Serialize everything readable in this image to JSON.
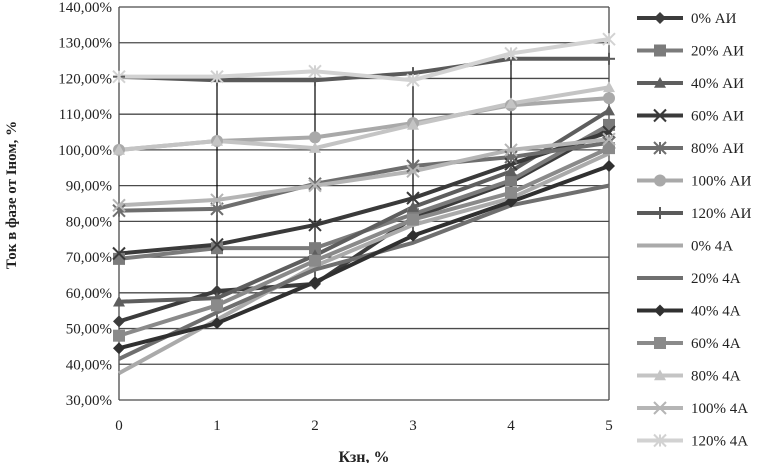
{
  "chart_data": {
    "type": "line",
    "title": "",
    "xlabel": "Кзн, %",
    "ylabel": "Ток в фазе от Iном, %",
    "x": [
      0,
      1,
      2,
      3,
      4,
      5
    ],
    "x_tick_labels": [
      "0",
      "1",
      "2",
      "3",
      "4",
      "5"
    ],
    "ylim": [
      30,
      140
    ],
    "y_tick_labels": [
      "30,00%",
      "40,00%",
      "50,00%",
      "60,00%",
      "70,00%",
      "80,00%",
      "90,00%",
      "100,00%",
      "110,00%",
      "120,00%",
      "130,00%",
      "140,00%"
    ],
    "y_ticks": [
      30,
      40,
      50,
      60,
      70,
      80,
      90,
      100,
      110,
      120,
      130,
      140
    ],
    "grid": "horizontal",
    "legend_position": "right",
    "vertical_lines_at_x": [
      1,
      2,
      3,
      4
    ],
    "vertical_line_ranges": [
      [
        51.5,
        120.5
      ],
      [
        62.5,
        120.5
      ],
      [
        74,
        121.5
      ],
      [
        84.5,
        125.5
      ]
    ],
    "series": [
      {
        "name": "0% АИ",
        "color": "#3c3c3c",
        "marker": "diamond",
        "values": [
          52,
          60.5,
          62.5,
          81,
          91,
          106
        ]
      },
      {
        "name": "20% АИ",
        "color": "#7b7b7b",
        "marker": "square",
        "values": [
          69.5,
          72.5,
          72.5,
          82,
          91.5,
          107
        ]
      },
      {
        "name": "40% АИ",
        "color": "#5e5e5e",
        "marker": "triangle",
        "values": [
          57.5,
          58.5,
          70.5,
          84,
          94,
          111
        ]
      },
      {
        "name": "60% АИ",
        "color": "#3a3a3a",
        "marker": "x",
        "values": [
          71,
          73.5,
          79,
          86.5,
          96,
          105
        ]
      },
      {
        "name": "80% АИ",
        "color": "#6e6e6e",
        "marker": "star",
        "values": [
          83,
          83.5,
          90.5,
          95.5,
          98,
          102
        ]
      },
      {
        "name": "100% АИ",
        "color": "#a9a9a9",
        "marker": "circle",
        "values": [
          100,
          102.5,
          103.5,
          107.5,
          112.5,
          114.5
        ]
      },
      {
        "name": "120% АИ",
        "color": "#5a5a5a",
        "marker": "plus",
        "values": [
          120.5,
          119.5,
          119.5,
          121.5,
          125.5,
          125.5
        ]
      },
      {
        "name": "0% 4А",
        "color": "#aaaaaa",
        "marker": "none",
        "values": [
          37.5,
          52.5,
          67.5,
          79,
          86.5,
          99
        ]
      },
      {
        "name": "20% 4А",
        "color": "#6f6f6f",
        "marker": "none",
        "values": [
          41.5,
          54.5,
          66.5,
          74,
          84.5,
          90
        ]
      },
      {
        "name": "40% 4А",
        "color": "#303030",
        "marker": "diamond",
        "values": [
          44.5,
          51.5,
          63,
          76,
          85.5,
          95.5
        ]
      },
      {
        "name": "60% 4А",
        "color": "#8a8a8a",
        "marker": "square",
        "values": [
          48,
          56.5,
          69,
          80.5,
          88,
          100.5
        ]
      },
      {
        "name": "80% 4А",
        "color": "#c4c4c4",
        "marker": "triangle",
        "values": [
          100,
          102.5,
          100.5,
          107,
          113,
          117.5
        ]
      },
      {
        "name": "100% 4А",
        "color": "#b5b5b5",
        "marker": "x",
        "values": [
          84.5,
          86,
          90,
          94,
          100,
          103
        ]
      },
      {
        "name": "120% 4А",
        "color": "#d2d2d2",
        "marker": "star",
        "values": [
          120.5,
          120.5,
          122,
          119.5,
          127,
          131
        ]
      }
    ]
  }
}
